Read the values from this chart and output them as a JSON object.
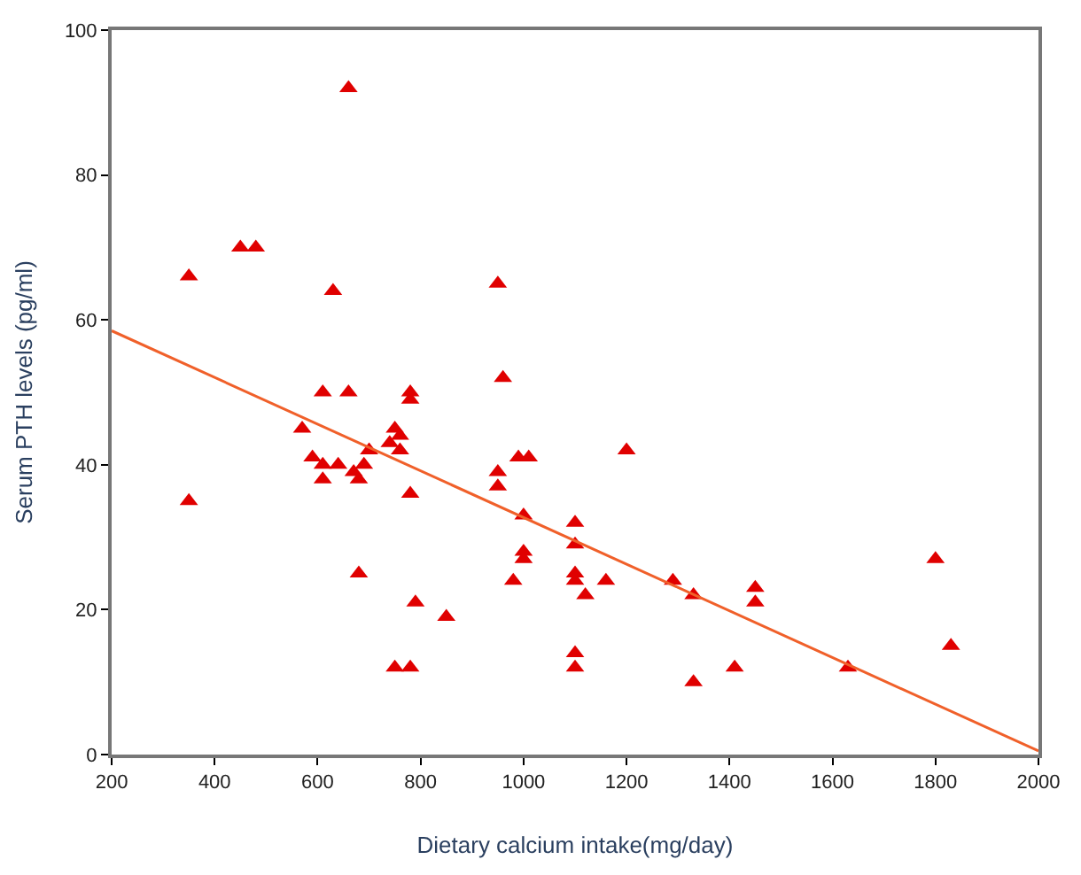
{
  "chart_data": {
    "type": "scatter",
    "xlabel": "Dietary calcium intake(mg/day)",
    "ylabel": "Serum PTH levels (pg/ml)",
    "xlim": [
      200,
      2000
    ],
    "xticks": [
      200,
      400,
      600,
      800,
      1000,
      1200,
      1400,
      1600,
      1800,
      2000
    ],
    "ylim": [
      0,
      100
    ],
    "yticks": [
      0,
      20,
      40,
      60,
      80,
      100
    ],
    "series": [
      {
        "marker": "triangle",
        "color": "#e00000",
        "x": [
          350,
          350,
          450,
          480,
          570,
          590,
          610,
          610,
          610,
          630,
          640,
          660,
          660,
          670,
          680,
          680,
          690,
          700,
          740,
          750,
          750,
          760,
          760,
          780,
          780,
          780,
          780,
          790,
          850,
          950,
          950,
          950,
          960,
          980,
          990,
          1000,
          1000,
          1000,
          1010,
          1100,
          1100,
          1100,
          1100,
          1100,
          1100,
          1120,
          1160,
          1200,
          1290,
          1330,
          1330,
          1410,
          1450,
          1450,
          1630,
          1800,
          1830
        ],
        "values": [
          66,
          35,
          70,
          70,
          45,
          41,
          40,
          38,
          50,
          64,
          40,
          50,
          92,
          39,
          38,
          25,
          40,
          42,
          43,
          12,
          45,
          42,
          44,
          12,
          36,
          49,
          50,
          21,
          19,
          65,
          39,
          37,
          52,
          24,
          41,
          33,
          28,
          27,
          41,
          32,
          29,
          25,
          24,
          14,
          12,
          22,
          24,
          42,
          24,
          22,
          10,
          12,
          23,
          21,
          12,
          27,
          15
        ]
      },
      {
        "type": "line",
        "marker": "none",
        "color": "#f0602a",
        "x": [
          200,
          2000
        ],
        "values": [
          58.5,
          0.5
        ]
      }
    ]
  }
}
